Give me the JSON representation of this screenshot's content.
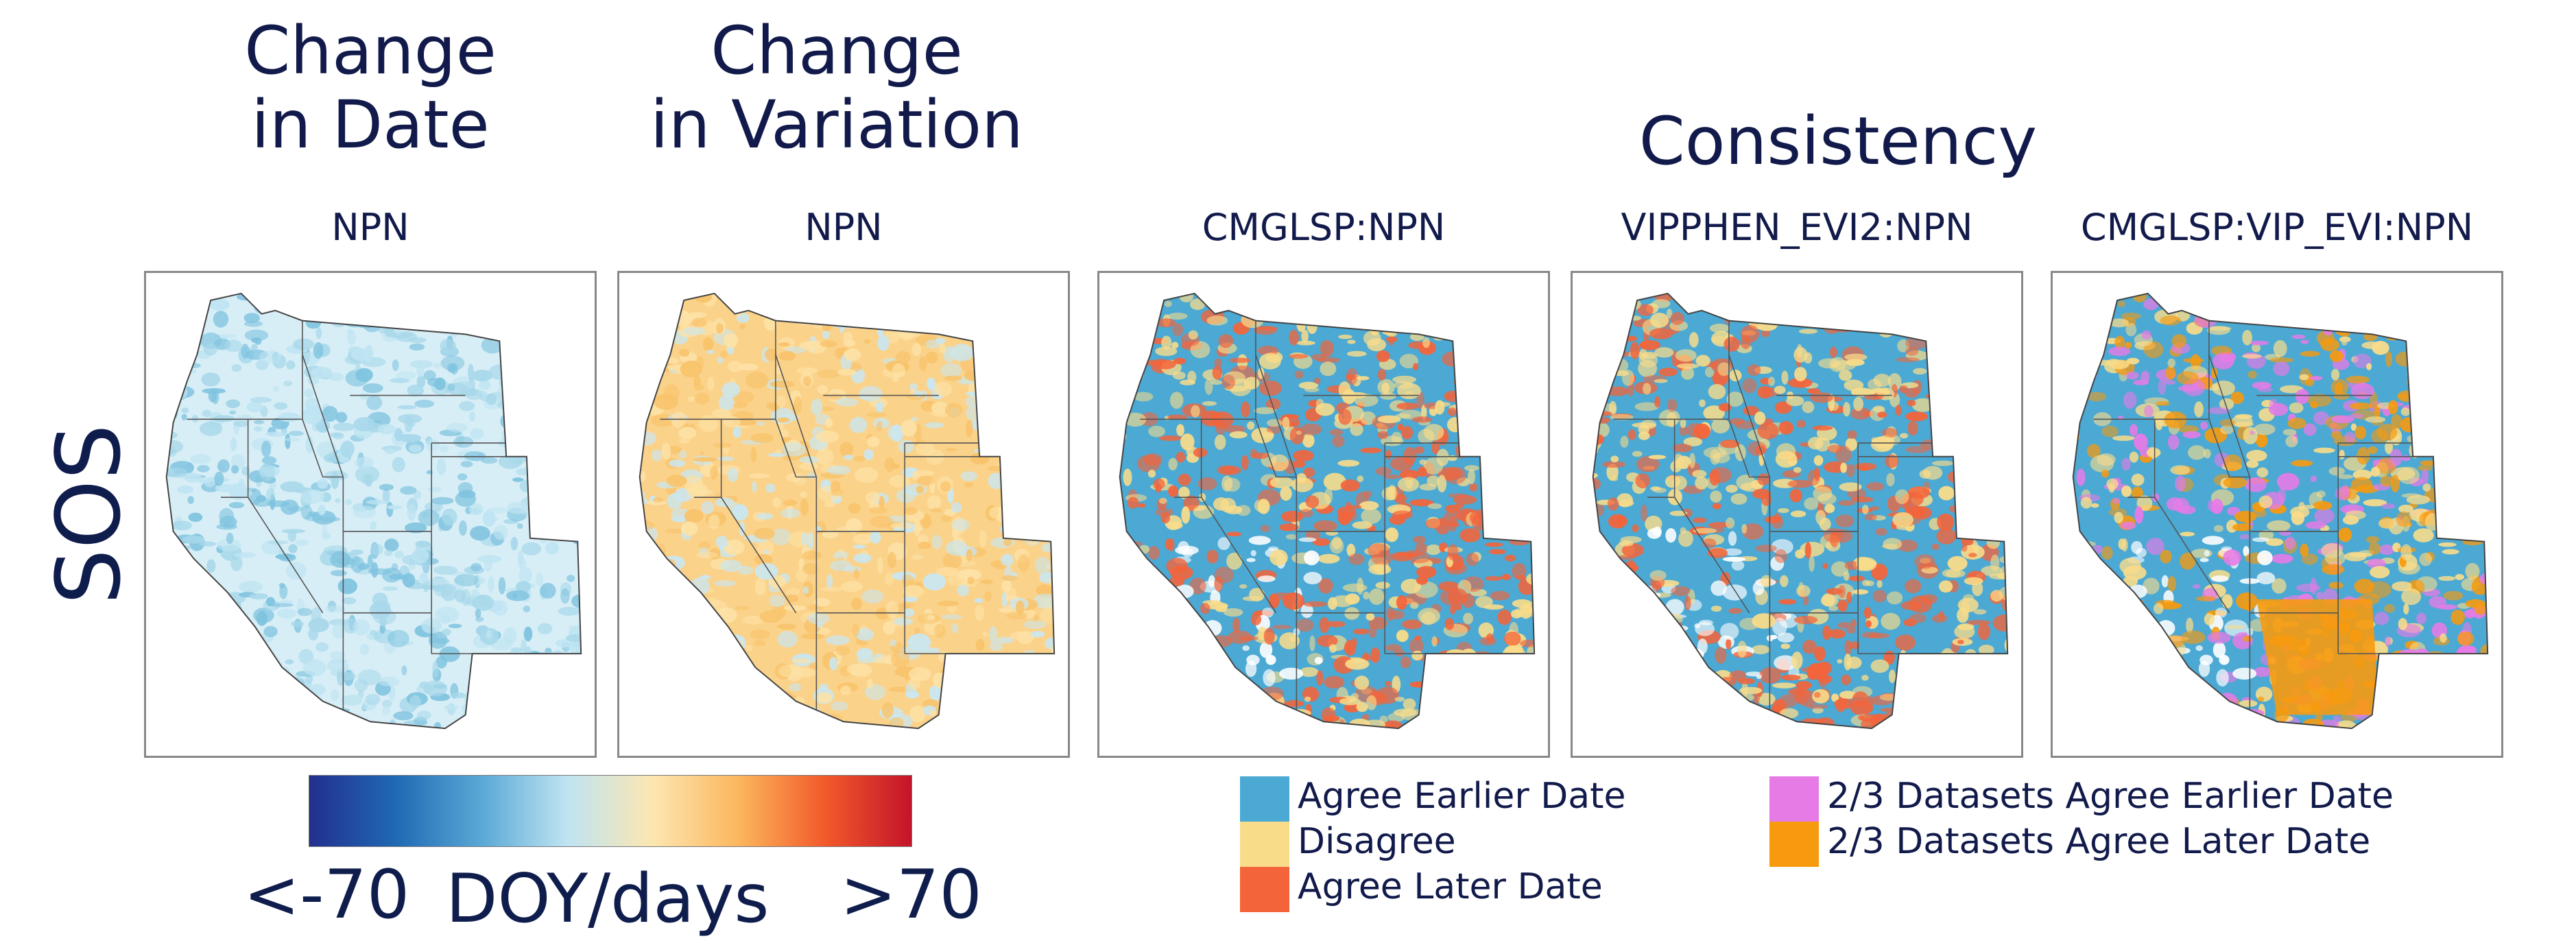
{
  "titles": {
    "change_in_date": "Change\nin Date",
    "change_in_variation": "Change\nin Variation",
    "consistency": "Consistency",
    "row_label": "SOS"
  },
  "panels": [
    {
      "subtitle": "NPN",
      "type": "gradient-date",
      "palette": [
        "#d7eef6",
        "#a8d8ea",
        "#7fc3df",
        "#bfe4f2"
      ]
    },
    {
      "subtitle": "NPN",
      "type": "gradient-variation",
      "palette": [
        "#fbd28a",
        "#f8c36b",
        "#c9e7f2",
        "#fde2a6"
      ]
    },
    {
      "subtitle": "CMGLSP:NPN",
      "type": "categorical",
      "palette": [
        "#4ba9d4",
        "#f9dc8a",
        "#f4643a"
      ]
    },
    {
      "subtitle": "VIPPHEN_EVI2:NPN",
      "type": "categorical",
      "palette": [
        "#4ba9d4",
        "#f9dc8a",
        "#f4643a"
      ]
    },
    {
      "subtitle": "CMGLSP:VIP_EVI:NPN",
      "type": "categorical4",
      "palette": [
        "#4ba9d4",
        "#e77be6",
        "#f79a0e",
        "#f9dc8a"
      ]
    }
  ],
  "colorbar": {
    "min_label": "<-70",
    "units_label": "DOY/days",
    "max_label": ">70",
    "colors": [
      "#232f8e",
      "#1f69b3",
      "#5aa8d6",
      "#bfe4f2",
      "#fde6b0",
      "#fbb65c",
      "#f2592a",
      "#c4142b"
    ]
  },
  "legend_left": [
    {
      "label": "Agree Earlier Date",
      "color": "#4ba9d4"
    },
    {
      "label": "Disagree",
      "color": "#f9dc8a"
    },
    {
      "label": "Agree Later Date",
      "color": "#f4643a"
    }
  ],
  "legend_right": [
    {
      "label": "2/3 Datasets Agree Earlier Date",
      "color": "#e77be6"
    },
    {
      "label": "2/3 Datasets Agree Later Date",
      "color": "#f79a0e"
    }
  ],
  "chart_data": {
    "type": "heatmap",
    "title": "SOS",
    "panels": [
      "Change in Date: NPN",
      "Change in Variation: NPN",
      "Consistency: CMGLSP:NPN",
      "Consistency: VIPPHEN_EVI2:NPN",
      "Consistency: CMGLSP:VIP_EVI:NPN"
    ],
    "colorbar_range_label": [
      "<-70",
      ">70"
    ],
    "colorbar_units": "DOY/days",
    "categories": [
      "Agree Earlier Date",
      "Disagree",
      "Agree Later Date",
      "2/3 Datasets Agree Earlier Date",
      "2/3 Datasets Agree Later Date"
    ]
  }
}
